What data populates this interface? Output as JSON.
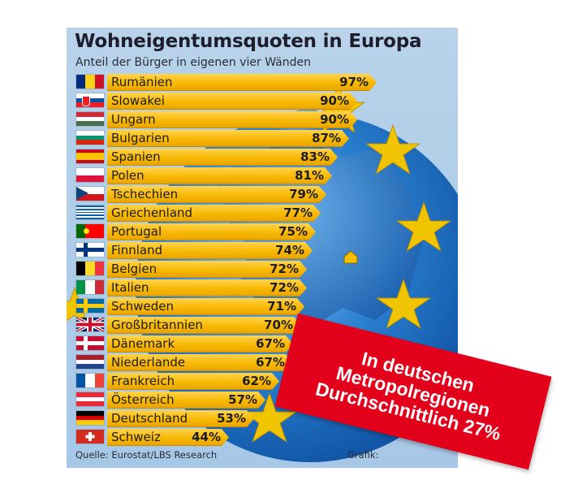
{
  "chart_data": {
    "type": "bar",
    "orientation": "horizontal",
    "title": "Wohneigentumsquoten in Europa",
    "subtitle": "Anteil der Bürger in eigenen vier Wänden",
    "xlim": [
      0,
      100
    ],
    "categories": [
      "Rumänien",
      "Slowakei",
      "Ungarn",
      "Bulgarien",
      "Spanien",
      "Polen",
      "Tschechien",
      "Griechenland",
      "Portugal",
      "Finnland",
      "Belgien",
      "Italien",
      "Schweden",
      "Großbritannien",
      "Dänemark",
      "Niederlande",
      "Frankreich",
      "Österreich",
      "Deutschland",
      "Schweiz"
    ],
    "values": [
      97,
      90,
      90,
      87,
      83,
      81,
      79,
      77,
      75,
      74,
      72,
      72,
      71,
      70,
      67,
      67,
      62,
      57,
      53,
      44
    ],
    "value_labels": [
      "97%",
      "90%",
      "90%",
      "87%",
      "83%",
      "81%",
      "79%",
      "77%",
      "75%",
      "74%",
      "72%",
      "72%",
      "71%",
      "70%",
      "67%",
      "67%",
      "62%",
      "57%",
      "53%",
      "44%"
    ],
    "flag_icons": [
      "flag-romania-icon",
      "flag-slovakia-icon",
      "flag-hungary-icon",
      "flag-bulgaria-icon",
      "flag-spain-icon",
      "flag-poland-icon",
      "flag-czechia-icon",
      "flag-greece-icon",
      "flag-portugal-icon",
      "flag-finland-icon",
      "flag-belgium-icon",
      "flag-italy-icon",
      "flag-sweden-icon",
      "flag-uk-icon",
      "flag-denmark-icon",
      "flag-netherlands-icon",
      "flag-france-icon",
      "flag-austria-icon",
      "flag-germany-icon",
      "flag-switzerland-icon"
    ],
    "bar_color": "#f7b700",
    "grid": false,
    "source": "Quelle: Eurostat/LBS Research",
    "credit": "Grafik:"
  },
  "sticker": {
    "lines": [
      "In deutschen",
      "Metropolregionen",
      "Durchschnittlich 27%"
    ],
    "color": "#e2001a"
  },
  "colors": {
    "background": "#a6c7e6",
    "globe": "#1f6fc0",
    "star": "#f0c400"
  }
}
